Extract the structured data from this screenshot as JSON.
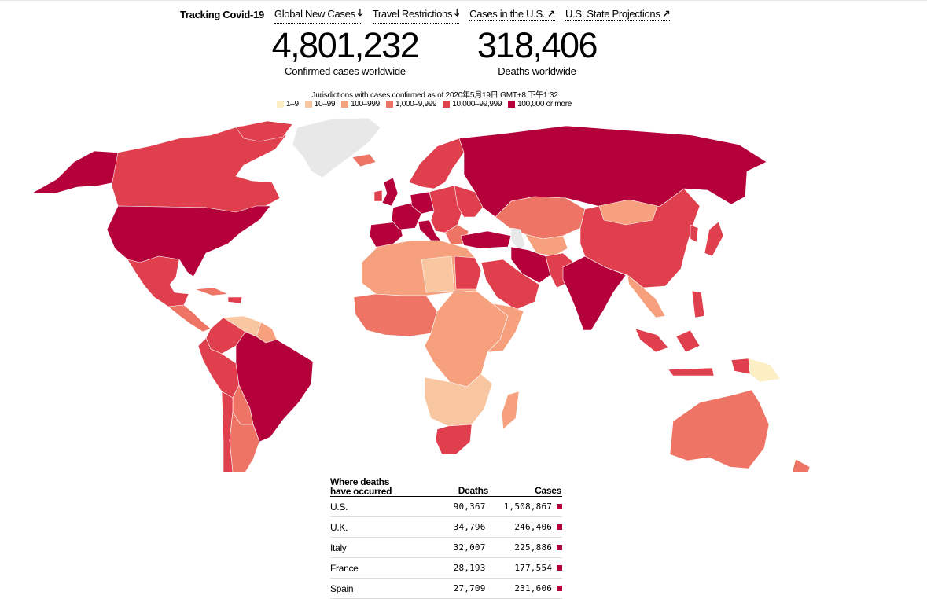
{
  "nav": {
    "brand": "Tracking Covid-19",
    "links": [
      {
        "label": "Global New Cases",
        "arrow": "🡓"
      },
      {
        "label": "Travel Restrictions",
        "arrow": "🡓"
      },
      {
        "label": "Cases in the U.S.",
        "arrow": "↗"
      },
      {
        "label": "U.S. State Projections",
        "arrow": "↗"
      }
    ]
  },
  "stats": {
    "cases": {
      "value": "4,801,232",
      "label": "Confirmed cases worldwide"
    },
    "deaths": {
      "value": "318,406",
      "label": "Deaths worldwide"
    }
  },
  "legend": {
    "title": "Jurisdictions with cases confirmed as of 2020年5月19日 GMT+8 下午1:32",
    "items": [
      {
        "label": "1–9",
        "color": "#fcefc4"
      },
      {
        "label": "10–99",
        "color": "#f8c6a0"
      },
      {
        "label": "100–999",
        "color": "#f6a07e"
      },
      {
        "label": "1,000–9,999",
        "color": "#ee7565"
      },
      {
        "label": "10,000–99,999",
        "color": "#e03f4e"
      },
      {
        "label": "100,000 or more",
        "color": "#b5013a"
      }
    ]
  },
  "map": {
    "nodata_color": "#e8e8e8"
  },
  "table": {
    "headers": {
      "where_line1": "Where deaths",
      "where_line2": "have occurred",
      "deaths": "Deaths",
      "cases": "Cases"
    },
    "rows": [
      {
        "country": "U.S.",
        "deaths": "90,367",
        "cases": "1,508,867"
      },
      {
        "country": "U.K.",
        "deaths": "34,796",
        "cases": "246,406"
      },
      {
        "country": "Italy",
        "deaths": "32,007",
        "cases": "225,886"
      },
      {
        "country": "France",
        "deaths": "28,193",
        "cases": "177,554"
      },
      {
        "country": "Spain",
        "deaths": "27,709",
        "cases": "231,606"
      }
    ]
  }
}
